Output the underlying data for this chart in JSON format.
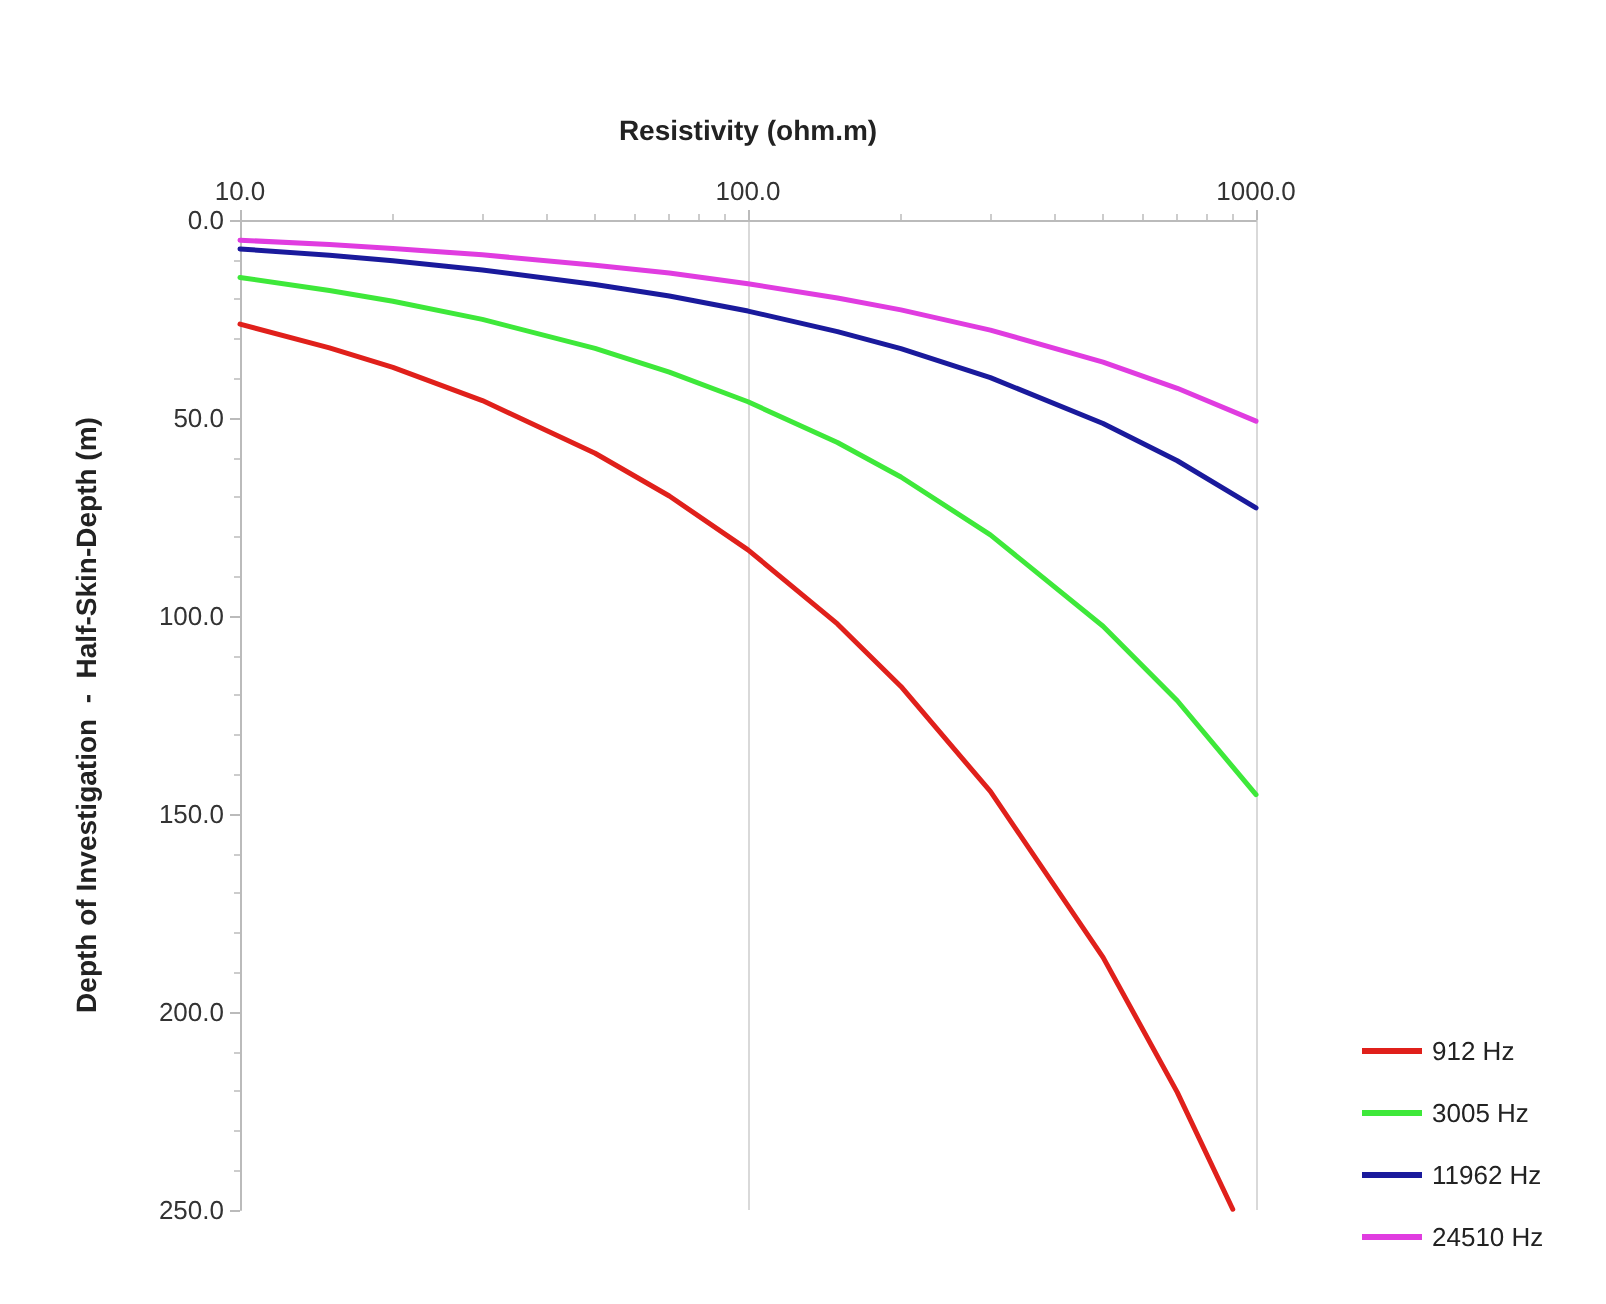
{
  "chart_data": {
    "type": "line",
    "xlabel": "Resistivity (ohm.m)",
    "ylabel": "Depth of Investigation  -  Half-Skin-Depth (m)",
    "log": "x",
    "xlim": [
      10,
      1000
    ],
    "xticks": [
      {
        "value": 10,
        "label": "10.0"
      },
      {
        "value": 100,
        "label": "100.0"
      },
      {
        "value": 1000,
        "label": "1000.0"
      }
    ],
    "ylim": [
      250,
      0
    ],
    "yticks": [
      {
        "value": 0,
        "label": "0.0"
      },
      {
        "value": 50,
        "label": "50.0"
      },
      {
        "value": 100,
        "label": "100.0"
      },
      {
        "value": 150,
        "label": "150.0"
      },
      {
        "value": 200,
        "label": "200.0"
      },
      {
        "value": 250,
        "label": "250.0"
      }
    ],
    "grid": "x",
    "legend": "bottom right",
    "marker": "none",
    "line_style": "solid",
    "series": [
      {
        "name": "912 Hz",
        "color": "#e0201b",
        "x": [
          10,
          15,
          20,
          30,
          50,
          70,
          100,
          150,
          200,
          300,
          500,
          700,
          900
        ],
        "values": [
          26.3,
          32.3,
          37.2,
          45.6,
          58.9,
          69.7,
          83.3,
          102.0,
          117.8,
          144.3,
          186.2,
          220.3,
          249.8
        ]
      },
      {
        "name": "3005 Hz",
        "color": "#3ee83a",
        "x": [
          10,
          15,
          20,
          30,
          50,
          70,
          100,
          150,
          200,
          300,
          500,
          700,
          1000
        ],
        "values": [
          14.5,
          17.8,
          20.5,
          25.1,
          32.4,
          38.4,
          45.9,
          56.2,
          64.9,
          79.5,
          102.6,
          121.4,
          145.1
        ]
      },
      {
        "name": "11962 Hz",
        "color": "#1a1a9c",
        "x": [
          10,
          15,
          20,
          30,
          50,
          70,
          100,
          150,
          200,
          300,
          500,
          700,
          1000
        ],
        "values": [
          7.3,
          8.9,
          10.3,
          12.6,
          16.3,
          19.2,
          23.0,
          28.2,
          32.5,
          39.8,
          51.4,
          60.8,
          72.7
        ]
      },
      {
        "name": "24510 Hz",
        "color": "#e03ce0",
        "x": [
          10,
          15,
          20,
          30,
          50,
          70,
          100,
          150,
          200,
          300,
          500,
          700,
          1000
        ],
        "values": [
          5.1,
          6.2,
          7.2,
          8.8,
          11.4,
          13.4,
          16.1,
          19.7,
          22.7,
          27.8,
          35.9,
          42.5,
          50.8
        ]
      }
    ]
  }
}
